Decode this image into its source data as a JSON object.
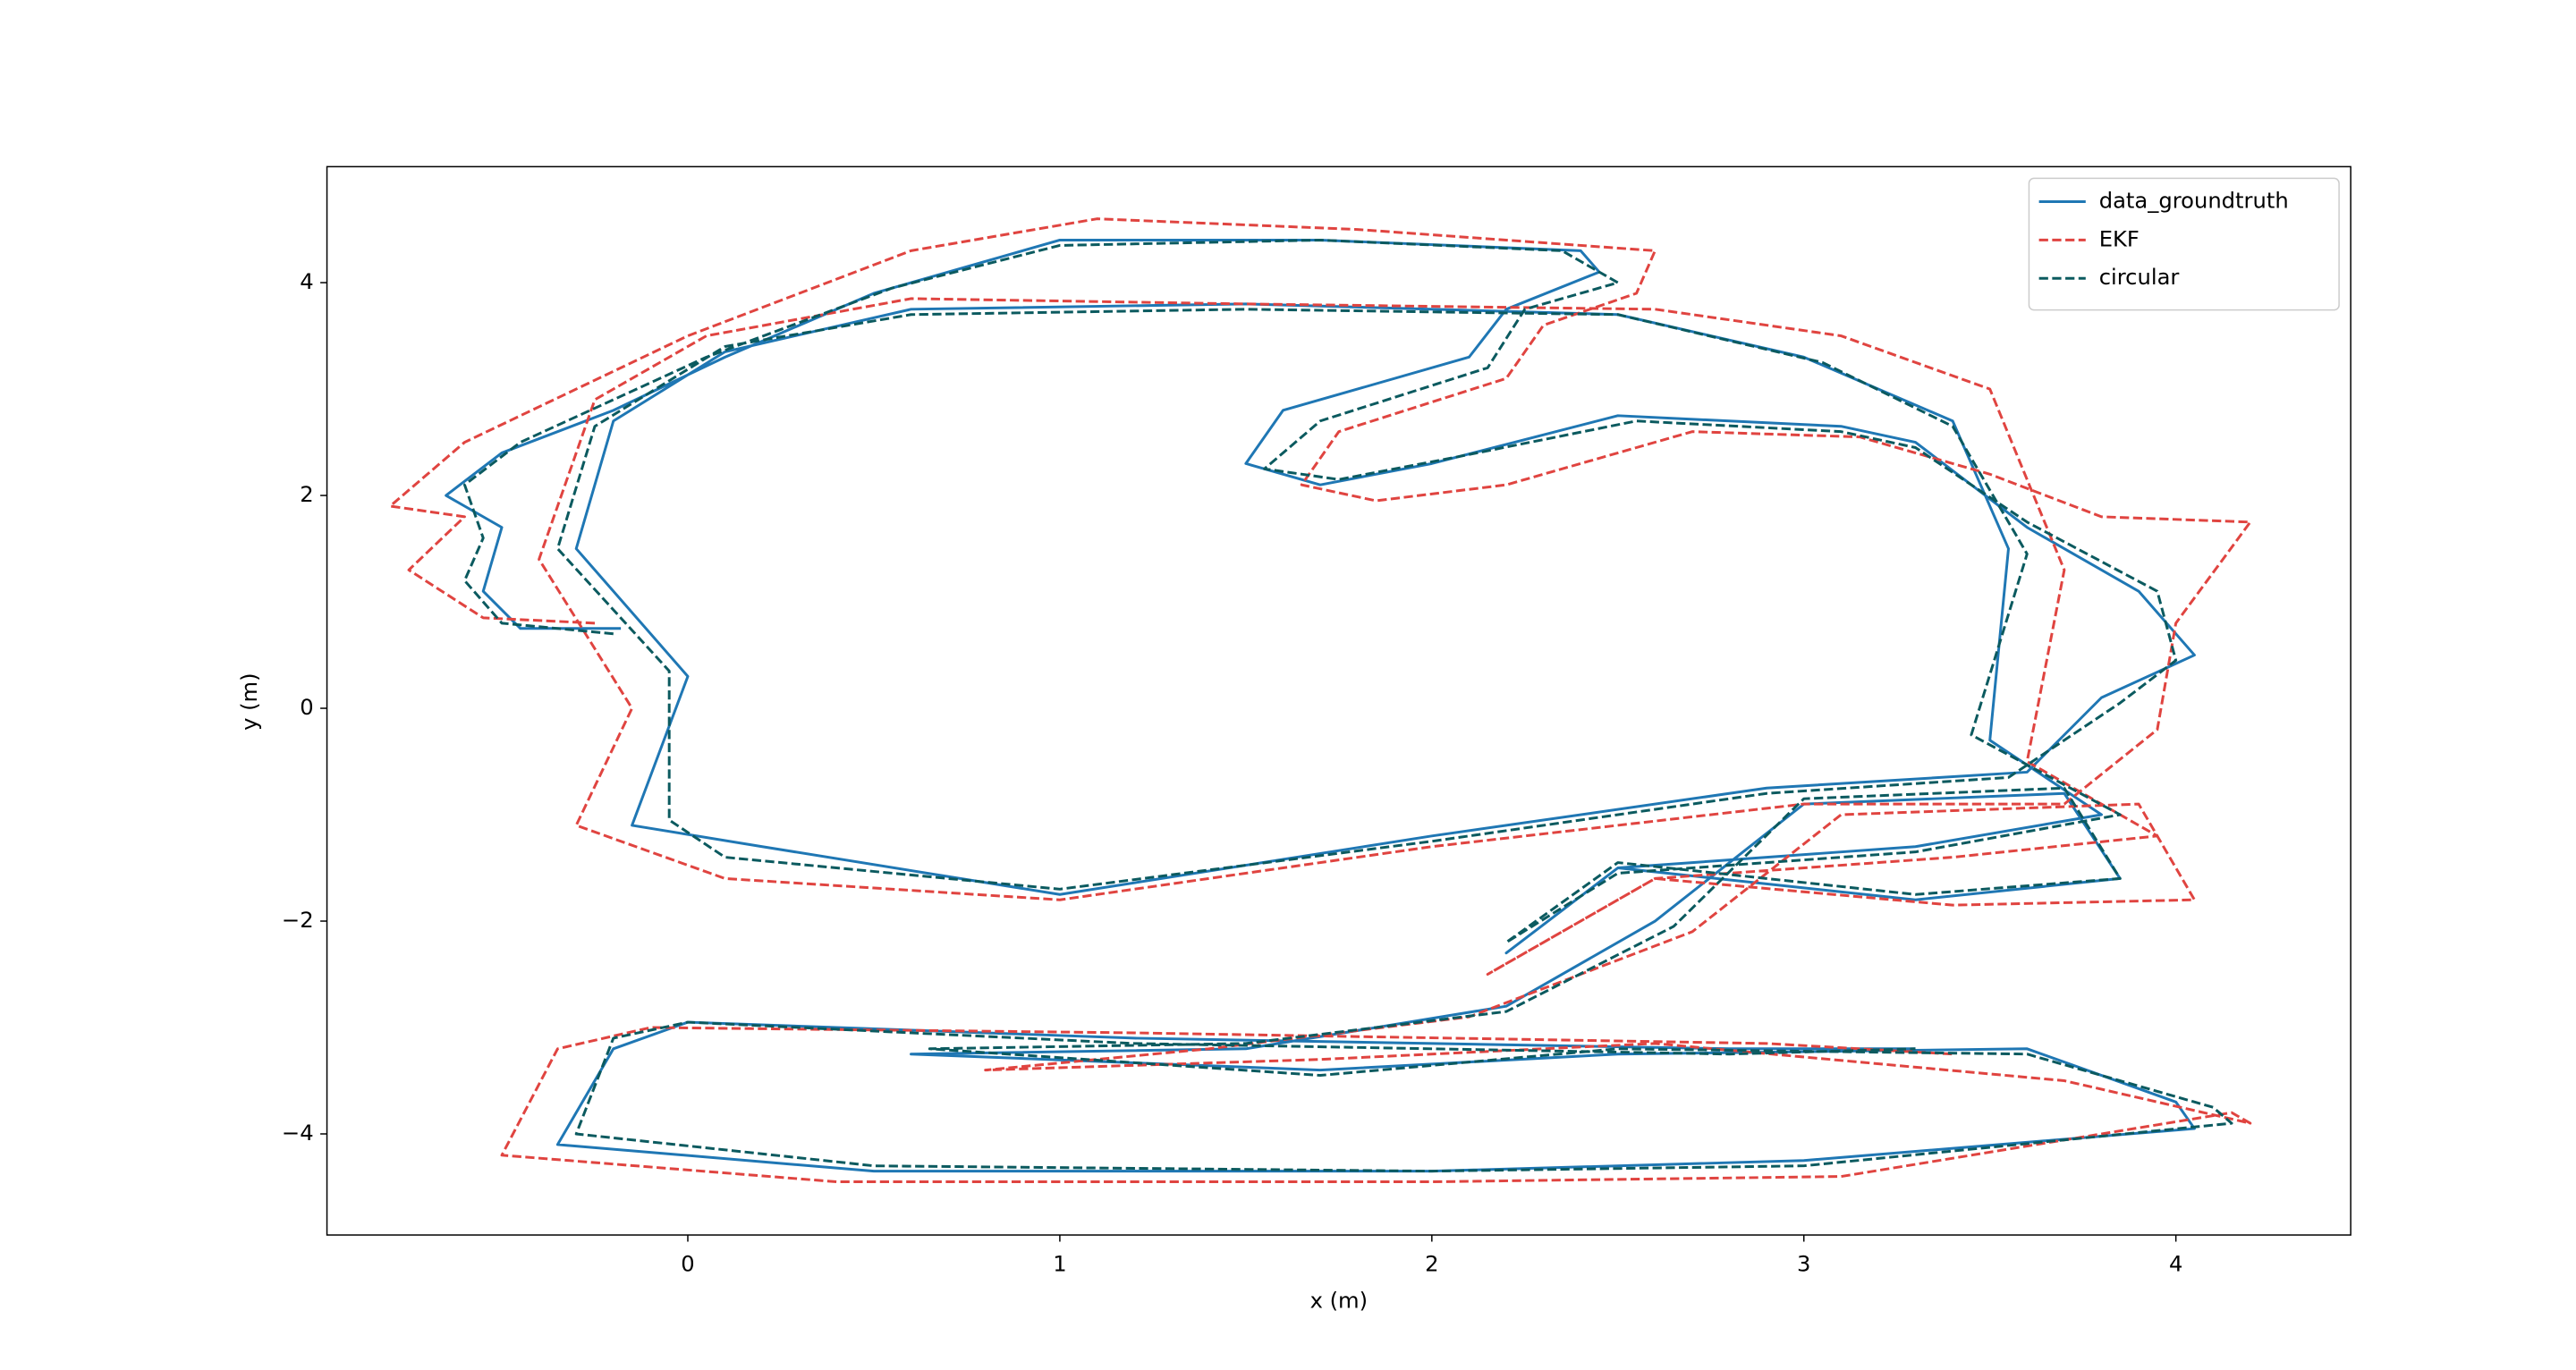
{
  "chart_data": {
    "type": "line",
    "xlabel": "x (m)",
    "ylabel": "y (m)",
    "xlim": [
      -0.97,
      4.47
    ],
    "ylim": [
      -4.95,
      5.09
    ],
    "xticks": [
      0,
      1,
      2,
      3,
      4
    ],
    "yticks": [
      {
        "value": -4,
        "label": "−4"
      },
      {
        "value": -2,
        "label": "−2"
      },
      0,
      2,
      4
    ],
    "legend": "upper right",
    "series": [
      {
        "name": "data_groundtruth",
        "color": "#1f77b4",
        "linestyle": "solid",
        "x": [
          -0.18,
          -0.45,
          -0.55,
          -0.5,
          -0.65,
          -0.5,
          -0.2,
          0.1,
          0.5,
          1.0,
          1.7,
          2.4,
          2.45,
          2.2,
          2.1,
          1.6,
          1.5,
          1.7,
          2.0,
          2.5,
          3.1,
          3.3,
          3.6,
          3.9,
          4.05,
          3.8,
          3.6,
          2.9,
          2.0,
          1.0,
          0.2,
          -0.15,
          0.0,
          -0.3,
          -0.2,
          0.1,
          0.6,
          1.5,
          2.5,
          3.0,
          3.4,
          3.55,
          3.5,
          3.8,
          3.3,
          2.5,
          2.2,
          2.5,
          3.3,
          3.85,
          3.7,
          3.0,
          2.6,
          2.2,
          1.5,
          0.6,
          1.7,
          2.5,
          3.6,
          4.0,
          4.05,
          3.0,
          2.0,
          0.5,
          -0.35,
          -0.2,
          0.0,
          1.2,
          2.8,
          3.3
        ],
        "y": [
          0.75,
          0.75,
          1.1,
          1.7,
          2.0,
          2.4,
          2.8,
          3.3,
          3.9,
          4.4,
          4.4,
          4.3,
          4.1,
          3.75,
          3.3,
          2.8,
          2.3,
          2.1,
          2.3,
          2.75,
          2.65,
          2.5,
          1.7,
          1.1,
          0.5,
          0.1,
          -0.6,
          -0.75,
          -1.2,
          -1.75,
          -1.3,
          -1.1,
          0.3,
          1.5,
          2.7,
          3.35,
          3.75,
          3.8,
          3.7,
          3.3,
          2.7,
          1.5,
          -0.3,
          -1.0,
          -1.3,
          -1.5,
          -2.3,
          -1.5,
          -1.8,
          -1.6,
          -0.8,
          -0.9,
          -2.0,
          -2.8,
          -3.2,
          -3.25,
          -3.4,
          -3.25,
          -3.2,
          -3.7,
          -3.95,
          -4.25,
          -4.35,
          -4.35,
          -4.1,
          -3.2,
          -2.95,
          -3.1,
          -3.2,
          -3.2
        ]
      },
      {
        "name": "EKF",
        "color": "#e04440",
        "linestyle": "dashed",
        "x": [
          -0.25,
          -0.55,
          -0.75,
          -0.6,
          -0.8,
          -0.6,
          -0.3,
          0.0,
          0.6,
          1.1,
          1.8,
          2.6,
          2.55,
          2.3,
          2.2,
          1.75,
          1.65,
          1.85,
          2.2,
          2.7,
          3.15,
          3.5,
          3.8,
          4.2,
          4.0,
          3.95,
          3.7,
          3.0,
          2.0,
          1.0,
          0.1,
          -0.3,
          -0.15,
          -0.4,
          -0.25,
          0.05,
          0.6,
          1.5,
          2.6,
          3.1,
          3.5,
          3.7,
          3.6,
          3.95,
          3.4,
          2.6,
          2.15,
          2.6,
          3.4,
          4.05,
          3.9,
          3.1,
          2.7,
          2.1,
          1.4,
          0.8,
          1.7,
          2.6,
          3.7,
          4.2,
          4.15,
          3.1,
          2.0,
          0.4,
          -0.5,
          -0.35,
          -0.1,
          1.2,
          2.9,
          3.4
        ],
        "y": [
          0.8,
          0.85,
          1.3,
          1.8,
          1.9,
          2.5,
          3.0,
          3.5,
          4.3,
          4.6,
          4.5,
          4.3,
          3.9,
          3.6,
          3.1,
          2.6,
          2.1,
          1.95,
          2.1,
          2.6,
          2.55,
          2.2,
          1.8,
          1.75,
          0.8,
          -0.2,
          -0.9,
          -0.9,
          -1.3,
          -1.8,
          -1.6,
          -1.1,
          0.0,
          1.4,
          2.9,
          3.5,
          3.85,
          3.8,
          3.75,
          3.5,
          3.0,
          1.3,
          -0.5,
          -1.2,
          -1.4,
          -1.6,
          -2.5,
          -1.6,
          -1.85,
          -1.8,
          -0.9,
          -1.0,
          -2.1,
          -2.9,
          -3.2,
          -3.4,
          -3.3,
          -3.15,
          -3.5,
          -3.9,
          -3.8,
          -4.4,
          -4.45,
          -4.45,
          -4.2,
          -3.2,
          -3.0,
          -3.05,
          -3.15,
          -3.25
        ]
      },
      {
        "name": "circular",
        "color": "#0b5a5f",
        "linestyle": "dashed",
        "x": [
          -0.2,
          -0.5,
          -0.6,
          -0.55,
          -0.6,
          -0.45,
          -0.2,
          0.05,
          0.55,
          1.0,
          1.7,
          2.35,
          2.5,
          2.25,
          2.15,
          1.7,
          1.55,
          1.75,
          2.05,
          2.55,
          3.1,
          3.3,
          3.6,
          3.95,
          4.0,
          3.85,
          3.55,
          2.9,
          2.0,
          1.0,
          0.1,
          -0.05,
          -0.05,
          -0.35,
          -0.25,
          0.1,
          0.6,
          1.5,
          2.5,
          3.05,
          3.4,
          3.6,
          3.45,
          3.85,
          3.3,
          2.5,
          2.2,
          2.5,
          3.3,
          3.85,
          3.7,
          3.0,
          2.65,
          2.2,
          1.5,
          0.65,
          1.7,
          2.5,
          3.6,
          4.1,
          4.15,
          3.0,
          2.0,
          0.5,
          -0.3,
          -0.2,
          0.0,
          1.2,
          2.8,
          3.3
        ],
        "y": [
          0.7,
          0.8,
          1.2,
          1.6,
          2.1,
          2.5,
          2.9,
          3.3,
          3.95,
          4.35,
          4.4,
          4.3,
          4.0,
          3.75,
          3.2,
          2.7,
          2.25,
          2.15,
          2.35,
          2.7,
          2.6,
          2.45,
          1.75,
          1.1,
          0.45,
          0.05,
          -0.65,
          -0.8,
          -1.25,
          -1.7,
          -1.4,
          -1.05,
          0.35,
          1.5,
          2.65,
          3.4,
          3.7,
          3.75,
          3.7,
          3.25,
          2.65,
          1.45,
          -0.25,
          -1.0,
          -1.35,
          -1.55,
          -2.2,
          -1.45,
          -1.75,
          -1.6,
          -0.75,
          -0.85,
          -2.05,
          -2.85,
          -3.15,
          -3.2,
          -3.45,
          -3.2,
          -3.25,
          -3.75,
          -3.9,
          -4.3,
          -4.35,
          -4.3,
          -4.0,
          -3.1,
          -2.95,
          -3.15,
          -3.25,
          -3.2
        ]
      }
    ]
  }
}
